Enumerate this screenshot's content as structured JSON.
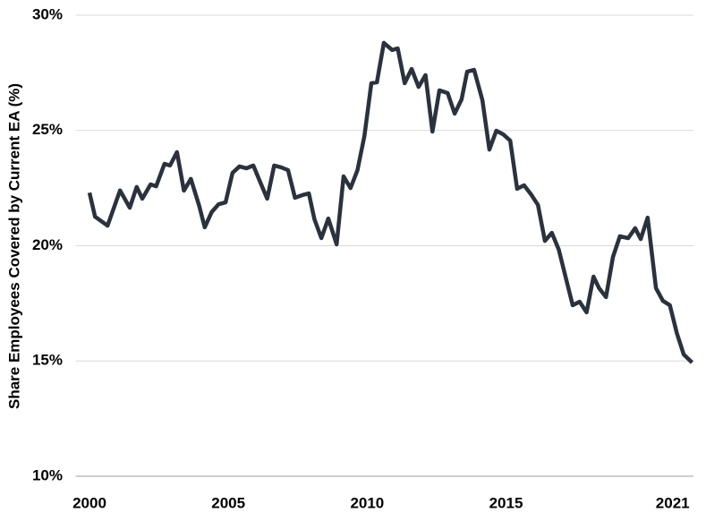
{
  "chart_data": {
    "type": "line",
    "y_label": "Share Employees Covered by Current EA (%)",
    "x": [
      2000.0,
      2000.2,
      2000.65,
      2001.1,
      2001.45,
      2001.7,
      2001.9,
      2002.2,
      2002.4,
      2002.7,
      2002.9,
      2003.15,
      2003.4,
      2003.65,
      2003.95,
      2004.15,
      2004.4,
      2004.65,
      2004.9,
      2005.15,
      2005.4,
      2005.65,
      2005.9,
      2006.1,
      2006.4,
      2006.65,
      2006.9,
      2007.15,
      2007.4,
      2007.65,
      2007.9,
      2008.1,
      2008.35,
      2008.6,
      2008.9,
      2009.15,
      2009.4,
      2009.65,
      2009.9,
      2010.15,
      2010.35,
      2010.6,
      2010.9,
      2011.1,
      2011.35,
      2011.6,
      2011.85,
      2012.1,
      2012.35,
      2012.6,
      2012.9,
      2013.15,
      2013.4,
      2013.6,
      2013.85,
      2014.15,
      2014.4,
      2014.65,
      2014.9,
      2015.15,
      2015.4,
      2015.65,
      2015.9,
      2016.15,
      2016.4,
      2016.65,
      2016.9,
      2017.15,
      2017.4,
      2017.65,
      2017.9,
      2018.15,
      2018.35,
      2018.6,
      2018.85,
      2019.1,
      2019.4,
      2019.65,
      2019.85,
      2020.1,
      2020.4,
      2020.65,
      2020.9,
      2021.15,
      2021.4,
      2021.7
    ],
    "series": [
      {
        "color": "#2a323d",
        "values": [
          22.3,
          21.26,
          20.87,
          22.4,
          21.65,
          22.55,
          22.04,
          22.66,
          22.58,
          23.55,
          23.48,
          24.06,
          22.39,
          22.9,
          21.73,
          20.8,
          21.46,
          21.8,
          21.88,
          23.16,
          23.44,
          23.36,
          23.48,
          22.9,
          22.04,
          23.48,
          23.4,
          23.28,
          22.08,
          22.19,
          22.27,
          21.15,
          20.33,
          21.18,
          20.06,
          23.01,
          22.5,
          23.28,
          24.76,
          27.05,
          27.09,
          28.8,
          28.49,
          28.56,
          27.05,
          27.67,
          26.89,
          27.4,
          24.95,
          26.74,
          26.62,
          25.73,
          26.35,
          27.55,
          27.63,
          26.31,
          24.17,
          24.99,
          24.83,
          24.56,
          22.47,
          22.62,
          22.23,
          21.77,
          20.21,
          20.56,
          19.83,
          18.62,
          17.42,
          17.57,
          17.11,
          18.66,
          18.16,
          17.77,
          19.51,
          20.41,
          20.33,
          20.76,
          20.29,
          21.22,
          18.16,
          17.61,
          17.42,
          16.21,
          15.28,
          14.93
        ]
      }
    ],
    "xlim": [
      1999.5,
      2021.75
    ],
    "xticks": [
      2000,
      2005,
      2010,
      2015,
      2021
    ],
    "ylim": [
      10,
      30
    ],
    "yticks": [
      {
        "value": 10,
        "label": "10%"
      },
      {
        "value": 15,
        "label": "15%"
      },
      {
        "value": 20,
        "label": "20%"
      },
      {
        "value": 25,
        "label": "25%"
      },
      {
        "value": 30,
        "label": "30%"
      }
    ],
    "grid": true
  }
}
